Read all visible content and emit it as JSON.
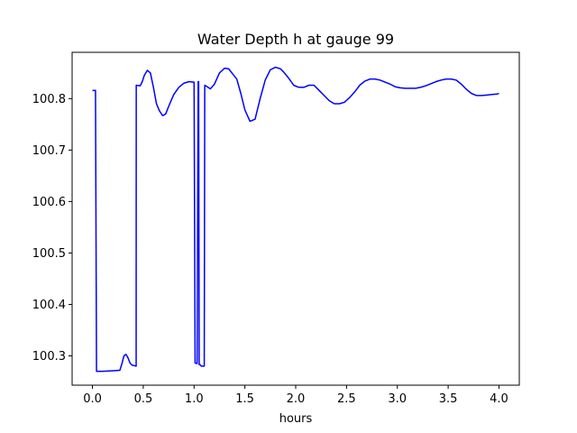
{
  "chart_data": {
    "type": "line",
    "title": "Water Depth h at gauge 99",
    "xlabel": "hours",
    "ylabel": "",
    "xlim": [
      -0.2,
      4.2
    ],
    "ylim": [
      100.243,
      100.89
    ],
    "xticks": [
      0.0,
      0.5,
      1.0,
      1.5,
      2.0,
      2.5,
      3.0,
      3.5,
      4.0
    ],
    "xtick_labels": [
      "0.0",
      "0.5",
      "1.0",
      "1.5",
      "2.0",
      "2.5",
      "3.0",
      "3.5",
      "4.0"
    ],
    "yticks": [
      100.3,
      100.4,
      100.5,
      100.6,
      100.7,
      100.8
    ],
    "ytick_labels": [
      "100.3",
      "100.4",
      "100.5",
      "100.6",
      "100.7",
      "100.8"
    ],
    "grid": false,
    "legend": "none",
    "series": [
      {
        "color": "#0000ff",
        "x": [
          0.0,
          0.025,
          0.03,
          0.04,
          0.1,
          0.2,
          0.27,
          0.29,
          0.31,
          0.33,
          0.35,
          0.37,
          0.39,
          0.41,
          0.43,
          0.431,
          0.47,
          0.49,
          0.51,
          0.54,
          0.57,
          0.6,
          0.63,
          0.66,
          0.69,
          0.72,
          0.75,
          0.8,
          0.85,
          0.9,
          0.95,
          1.0,
          1.01,
          1.015,
          1.03,
          1.04,
          1.045,
          1.05,
          1.06,
          1.07,
          1.1,
          1.105,
          1.13,
          1.16,
          1.2,
          1.25,
          1.3,
          1.34,
          1.38,
          1.42,
          1.46,
          1.5,
          1.55,
          1.6,
          1.65,
          1.7,
          1.75,
          1.8,
          1.85,
          1.88,
          1.93,
          1.98,
          2.03,
          2.08,
          2.13,
          2.18,
          2.23,
          2.28,
          2.33,
          2.38,
          2.43,
          2.48,
          2.53,
          2.58,
          2.63,
          2.68,
          2.73,
          2.78,
          2.83,
          2.88,
          2.93,
          2.98,
          3.03,
          3.08,
          3.13,
          3.18,
          3.23,
          3.28,
          3.33,
          3.38,
          3.43,
          3.48,
          3.53,
          3.58,
          3.63,
          3.68,
          3.73,
          3.78,
          3.83,
          3.88,
          3.93,
          3.98,
          4.0
        ],
        "y": [
          100.816,
          100.816,
          100.816,
          100.27,
          100.27,
          100.271,
          100.272,
          100.285,
          100.3,
          100.303,
          100.296,
          100.286,
          100.282,
          100.281,
          100.28,
          100.826,
          100.825,
          100.833,
          100.845,
          100.855,
          100.85,
          100.822,
          100.79,
          100.776,
          100.767,
          100.77,
          100.785,
          100.808,
          100.822,
          100.83,
          100.833,
          100.832,
          100.286,
          100.286,
          100.285,
          100.833,
          100.833,
          100.283,
          100.283,
          100.28,
          100.28,
          100.826,
          100.823,
          100.819,
          100.828,
          100.85,
          100.859,
          100.858,
          100.848,
          100.838,
          100.81,
          100.778,
          100.756,
          100.76,
          100.8,
          100.836,
          100.856,
          100.861,
          100.858,
          100.852,
          100.84,
          100.826,
          100.822,
          100.822,
          100.826,
          100.826,
          100.816,
          100.806,
          100.796,
          100.79,
          100.79,
          100.793,
          100.802,
          100.813,
          100.826,
          100.834,
          100.838,
          100.838,
          100.836,
          100.832,
          100.828,
          100.823,
          100.821,
          100.82,
          100.82,
          100.82,
          100.822,
          100.825,
          100.829,
          100.833,
          100.836,
          100.838,
          100.838,
          100.836,
          100.828,
          100.818,
          100.81,
          100.806,
          100.806,
          100.807,
          100.808,
          100.809,
          100.81
        ]
      }
    ]
  }
}
